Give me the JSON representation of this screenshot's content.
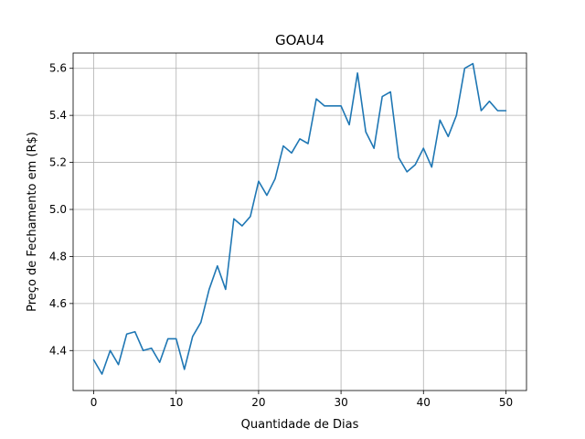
{
  "chart_data": {
    "type": "line",
    "title": "GOAU4",
    "xlabel": "Quantidade de Dias",
    "ylabel": "Preço de Fechamento em (R$)",
    "xlim": [
      -2.5,
      52.5
    ],
    "ylim": [
      4.23,
      5.665
    ],
    "xticks": [
      0,
      10,
      20,
      30,
      40,
      50
    ],
    "yticks": [
      4.4,
      4.6,
      4.8,
      5.0,
      5.2,
      5.4,
      5.6
    ],
    "xtick_labels": [
      "0",
      "10",
      "20",
      "30",
      "40",
      "50"
    ],
    "ytick_labels": [
      "4.4",
      "4.6",
      "4.8",
      "5.0",
      "5.2",
      "5.4",
      "5.6"
    ],
    "grid": true,
    "series": [
      {
        "color": "#1f77b4",
        "x": [
          0,
          1,
          2,
          3,
          4,
          5,
          6,
          7,
          8,
          9,
          10,
          11,
          12,
          13,
          14,
          15,
          16,
          17,
          18,
          19,
          20,
          21,
          22,
          23,
          24,
          25,
          26,
          27,
          28,
          29,
          30,
          31,
          32,
          33,
          34,
          35,
          36,
          37,
          38,
          39,
          40,
          41,
          42,
          43,
          44,
          45,
          46,
          47,
          48,
          49,
          50
        ],
        "values": [
          4.36,
          4.3,
          4.4,
          4.34,
          4.47,
          4.48,
          4.4,
          4.41,
          4.35,
          4.45,
          4.45,
          4.32,
          4.46,
          4.52,
          4.66,
          4.76,
          4.66,
          4.96,
          4.93,
          4.97,
          5.12,
          5.06,
          5.13,
          5.27,
          5.24,
          5.3,
          5.28,
          5.47,
          5.44,
          5.44,
          5.44,
          5.36,
          5.58,
          5.33,
          5.26,
          5.48,
          5.5,
          5.22,
          5.16,
          5.19,
          5.26,
          5.18,
          5.38,
          5.31,
          5.4,
          5.6,
          5.62,
          5.42,
          5.46,
          5.42,
          5.42
        ]
      }
    ]
  }
}
